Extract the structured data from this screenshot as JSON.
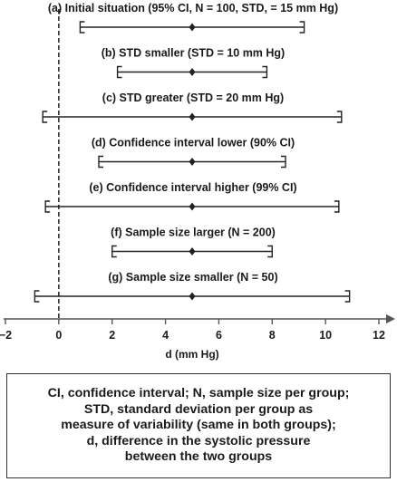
{
  "chart_data": {
    "type": "errorbar",
    "xlabel": "d (mm Hg)",
    "xlim": [
      -2,
      12
    ],
    "xticks": [
      -2,
      0,
      2,
      4,
      6,
      8,
      10,
      12
    ],
    "tick_labels": [
      "−2",
      "0",
      "2",
      "4",
      "6",
      "8",
      "10",
      "12"
    ],
    "reference_line": 0,
    "reference_line_style": "dashed",
    "series": [
      {
        "label": "(a) Initial situation (95% CI, N = 100, STD, = 15 mm Hg)",
        "estimate": 5,
        "lower": 0.8,
        "upper": 9.2
      },
      {
        "label": "(b) STD smaller (STD = 10 mm Hg)",
        "estimate": 5,
        "lower": 2.2,
        "upper": 7.8
      },
      {
        "label": "(c) STD greater (STD = 20 mm Hg)",
        "estimate": 5,
        "lower": -0.6,
        "upper": 10.6
      },
      {
        "label": "(d) Confidence interval lower (90% CI)",
        "estimate": 5,
        "lower": 1.5,
        "upper": 8.5
      },
      {
        "label": "(e) Confidence interval higher (99% CI)",
        "estimate": 5,
        "lower": -0.5,
        "upper": 10.5
      },
      {
        "label": "(f) Sample size larger (N = 200)",
        "estimate": 5,
        "lower": 2.0,
        "upper": 8.0
      },
      {
        "label": "(g) Sample size smaller (N = 50)",
        "estimate": 5,
        "lower": -0.9,
        "upper": 10.9
      }
    ]
  },
  "legend_note": "CI, confidence interval; N, sample size per group;\nSTD, standard deviation per group as\nmeasure of variability (same in both groups);\nd, difference in the systolic pressure\nbetween the two groups"
}
